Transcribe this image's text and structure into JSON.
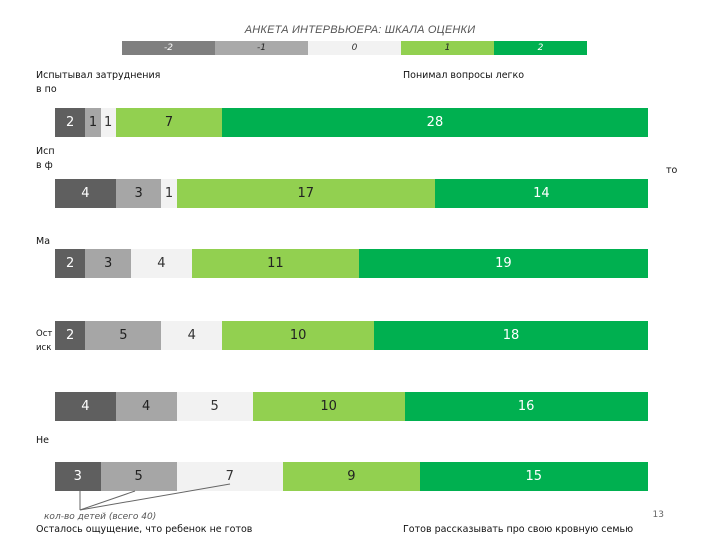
{
  "title": "АНКЕТА ИНТЕРВЬЮЕРА: ШКАЛА ОЦЕНКИ",
  "scale": [
    {
      "label": "-2",
      "bg": "#7f7f7f",
      "fg": "#ffffff"
    },
    {
      "label": "-1",
      "bg": "#a9a9a9",
      "fg": "#222222"
    },
    {
      "label": "0",
      "bg": "#f2f2f2",
      "fg": "#333333"
    },
    {
      "label": "1",
      "bg": "#92d050",
      "fg": "#222222"
    },
    {
      "label": "2",
      "bg": "#00b050",
      "fg": "#ffffff"
    }
  ],
  "labels": {
    "r1_left_a": "Испытывал затруднения",
    "r1_left_b": "в по",
    "r1_right": "Понимал вопросы легко",
    "r2_left_a": "Исп",
    "r2_left_b": "в ф",
    "r2_right": "то",
    "r3_left": "Ма",
    "r4_left_a": "Ост",
    "r4_left_b": "иск",
    "r6_left": "Не",
    "bottom_left": "Осталось ощущение, что ребенок не готов",
    "bottom_right": "Готов рассказывать про свою кровную семью"
  },
  "note": "кол-во детей (всего 40)",
  "page_number": "13",
  "chart_data": {
    "type": "bar",
    "orientation": "horizontal",
    "stacked": true,
    "title": "АНКЕТА ИНТЕРВЬЮЕРА: ШКАЛА ОЦЕНКИ",
    "categories": [
      "-2",
      "-1",
      "0",
      "1",
      "2"
    ],
    "colors": [
      "#5f5f5f",
      "#a6a6a6",
      "#f2f2f2",
      "#92d050",
      "#00b050"
    ],
    "total": 40,
    "rows": [
      [
        2,
        1,
        1,
        7,
        28
      ],
      [
        4,
        3,
        1,
        17,
        14
      ],
      [
        2,
        3,
        4,
        11,
        19
      ],
      [
        2,
        5,
        4,
        10,
        18
      ],
      [
        4,
        4,
        5,
        10,
        16
      ],
      [
        3,
        5,
        7,
        9,
        15
      ]
    ]
  }
}
